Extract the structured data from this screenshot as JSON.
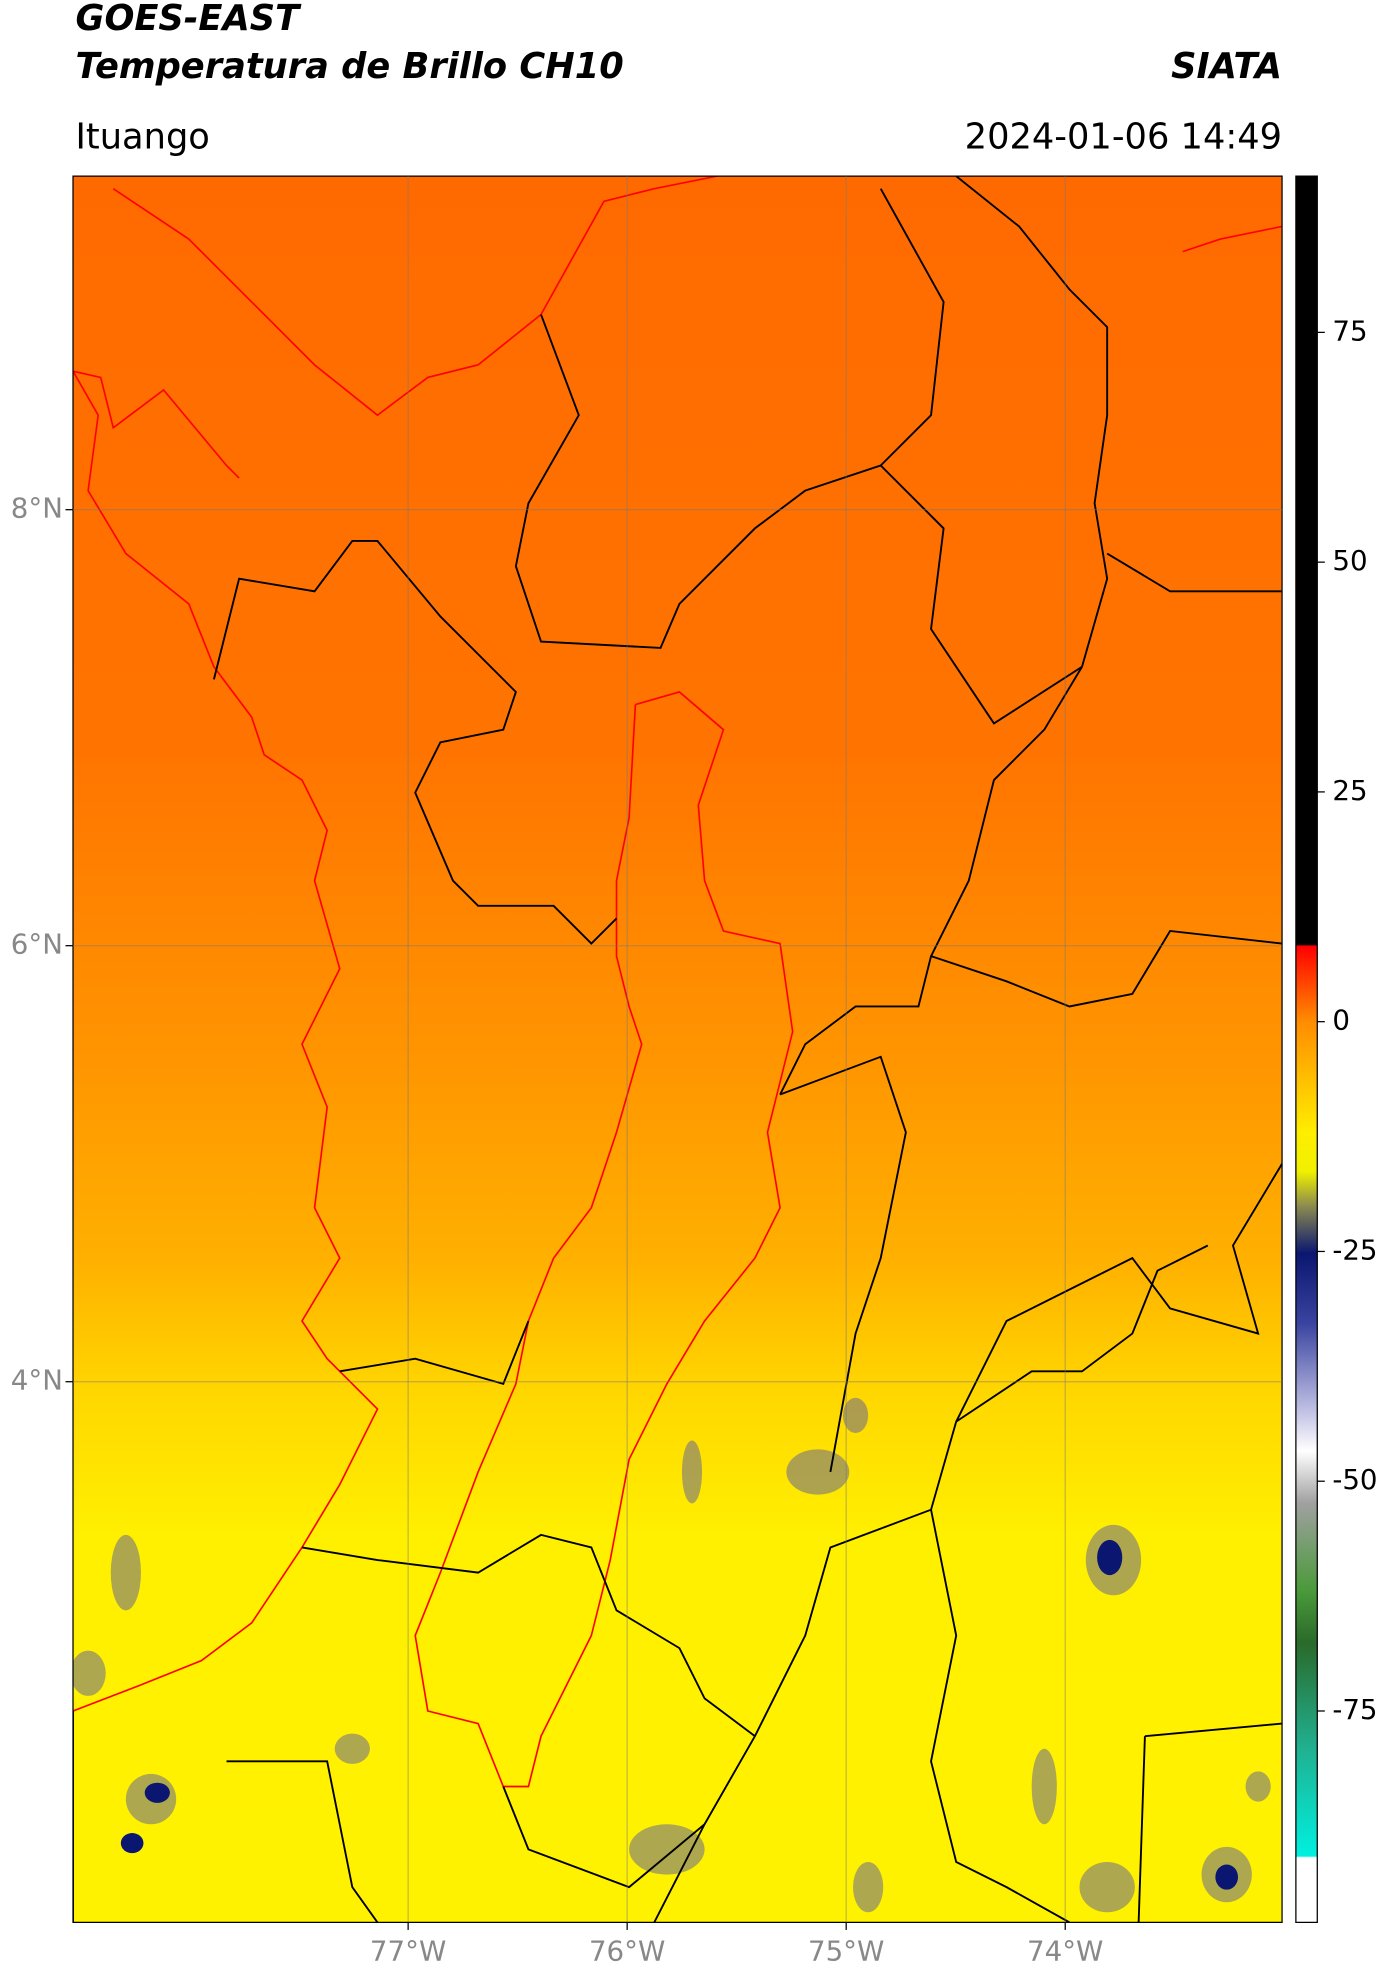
{
  "header": {
    "satellite": "GOES-EAST",
    "product": "Temperatura de Brillo CH10",
    "agency": "SIATA",
    "location": "Ituango",
    "timestamp": "2024-01-06 14:49"
  },
  "map": {
    "lonlim": [
      -78.53,
      -73.01
    ],
    "latlim": [
      1.52,
      9.53
    ],
    "lonticks": [
      {
        "value": -77,
        "label": "77°W"
      },
      {
        "value": -76,
        "label": "76°W"
      },
      {
        "value": -75,
        "label": "75°W"
      },
      {
        "value": -74,
        "label": "74°W"
      }
    ],
    "latticks": [
      {
        "value": 8,
        "label": "8°N"
      },
      {
        "value": 6,
        "label": "6°N"
      },
      {
        "value": 4,
        "label": "4°N"
      }
    ],
    "grid": true
  },
  "colorbar": {
    "lim": [
      -98,
      92
    ],
    "ticks": [
      75,
      50,
      25,
      0,
      -25,
      -50,
      -75
    ]
  }
}
